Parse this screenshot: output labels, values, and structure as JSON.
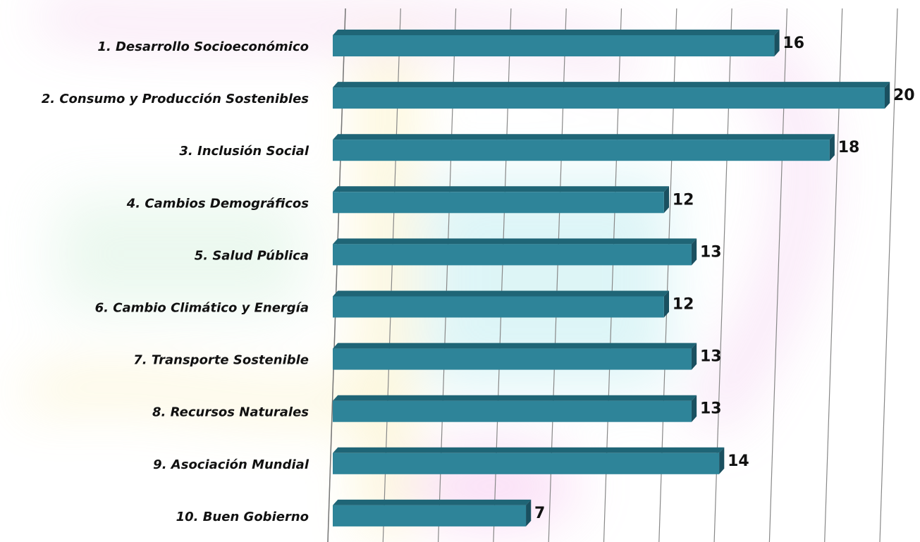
{
  "chart_data": {
    "type": "bar",
    "orientation": "horizontal",
    "three_d": true,
    "categories": [
      "1. Desarrollo Socioeconómico",
      "2. Consumo y Producción Sostenibles",
      "3. Inclusión Social",
      "4. Cambios Demográficos",
      "5. Salud Pública",
      "6. Cambio Climático y Energía",
      "7. Transporte Sostenible",
      "8. Recursos Naturales",
      "9. Asociación Mundial",
      "10. Buen Gobierno"
    ],
    "values": [
      16,
      20,
      18,
      12,
      13,
      12,
      13,
      13,
      14,
      7
    ],
    "color": "#2e8499",
    "xlim": [
      0,
      20
    ],
    "xticks": [
      0,
      2,
      4,
      6,
      8,
      10,
      12,
      14,
      16,
      18,
      20
    ],
    "grid": true
  }
}
